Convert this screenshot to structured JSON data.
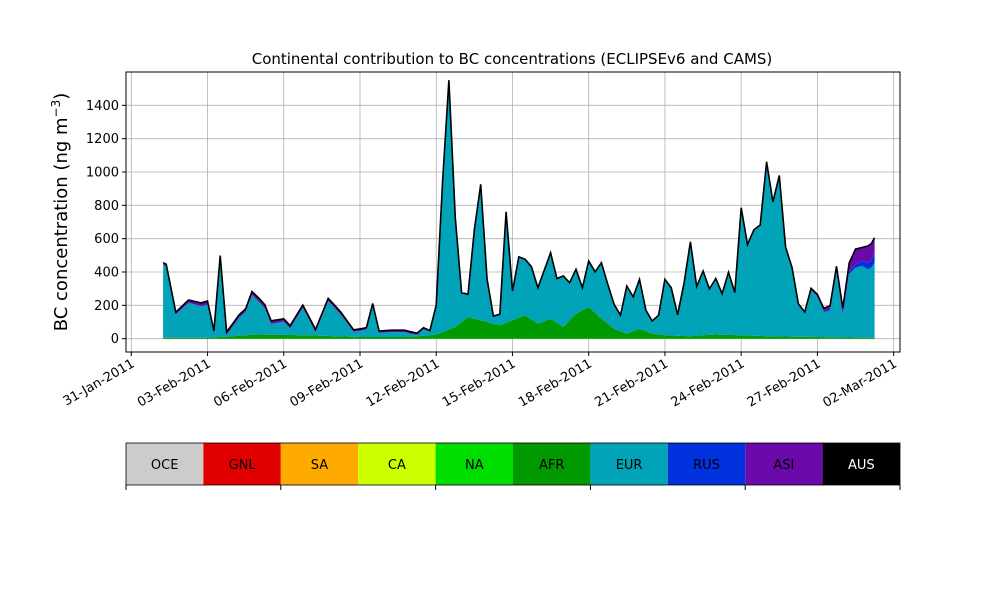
{
  "chart_data": {
    "type": "area",
    "title": "Continental contribution to BC concentrations (ECLIPSEv6 and CAMS)",
    "xlabel": "",
    "ylabel": "BC concentration (ng m",
    "ylabel_sup": "−3",
    "ylabel_close": ")",
    "x_is_date": true,
    "x_ticks": [
      "31-Jan-2011",
      "03-Feb-2011",
      "06-Feb-2011",
      "09-Feb-2011",
      "12-Feb-2011",
      "15-Feb-2011",
      "18-Feb-2011",
      "21-Feb-2011",
      "24-Feb-2011",
      "27-Feb-2011",
      "02-Mar-2011"
    ],
    "y_ticks": [
      0,
      200,
      400,
      600,
      800,
      1000,
      1200,
      1400
    ],
    "xlim": [
      "30-Jan-2011 19:00",
      "02-Mar-2011 06:00"
    ],
    "ylim": [
      -80,
      1600
    ],
    "grid": true,
    "stack_order": [
      "AFR",
      "EUR",
      "RUS",
      "ASI",
      "AUS"
    ],
    "series": [
      {
        "name": "AFR",
        "color": "#009900",
        "points": [
          [
            "01-Feb-2011 06:00",
            5
          ],
          [
            "03-Feb-2011 00:00",
            5
          ],
          [
            "05-Feb-2011 00:00",
            25
          ],
          [
            "07-Feb-2011 00:00",
            20
          ],
          [
            "09-Feb-2011 00:00",
            10
          ],
          [
            "11-Feb-2011 00:00",
            10
          ],
          [
            "12-Feb-2011 00:00",
            25
          ],
          [
            "12-Feb-2011 18:00",
            70
          ],
          [
            "13-Feb-2011 06:00",
            130
          ],
          [
            "14-Feb-2011 00:00",
            100
          ],
          [
            "14-Feb-2011 12:00",
            80
          ],
          [
            "15-Feb-2011 00:00",
            110
          ],
          [
            "15-Feb-2011 12:00",
            140
          ],
          [
            "16-Feb-2011 00:00",
            90
          ],
          [
            "16-Feb-2011 12:00",
            120
          ],
          [
            "17-Feb-2011 00:00",
            70
          ],
          [
            "17-Feb-2011 12:00",
            150
          ],
          [
            "18-Feb-2011 00:00",
            190
          ],
          [
            "18-Feb-2011 12:00",
            120
          ],
          [
            "19-Feb-2011 00:00",
            60
          ],
          [
            "19-Feb-2011 12:00",
            30
          ],
          [
            "20-Feb-2011 00:00",
            60
          ],
          [
            "20-Feb-2011 12:00",
            30
          ],
          [
            "21-Feb-2011 00:00",
            20
          ],
          [
            "22-Feb-2011 00:00",
            15
          ],
          [
            "23-Feb-2011 00:00",
            25
          ],
          [
            "24-Feb-2011 00:00",
            20
          ],
          [
            "25-Feb-2011 00:00",
            15
          ],
          [
            "27-Feb-2011 00:00",
            10
          ],
          [
            "01-Mar-2011 06:00",
            5
          ]
        ]
      },
      {
        "name": "EUR",
        "color": "#00a3b8",
        "points": [
          [
            "01-Feb-2011 06:00",
            440
          ],
          [
            "01-Feb-2011 09:00",
            430
          ],
          [
            "01-Feb-2011 18:00",
            140
          ],
          [
            "02-Feb-2011 06:00",
            210
          ],
          [
            "02-Feb-2011 18:00",
            190
          ],
          [
            "03-Feb-2011 00:00",
            200
          ],
          [
            "03-Feb-2011 06:00",
            20
          ],
          [
            "03-Feb-2011 12:00",
            470
          ],
          [
            "03-Feb-2011 18:00",
            10
          ],
          [
            "04-Feb-2011 06:00",
            110
          ],
          [
            "04-Feb-2011 12:00",
            140
          ],
          [
            "04-Feb-2011 18:00",
            240
          ],
          [
            "05-Feb-2011 06:00",
            160
          ],
          [
            "05-Feb-2011 12:00",
            65
          ],
          [
            "06-Feb-2011 00:00",
            80
          ],
          [
            "06-Feb-2011 06:00",
            40
          ],
          [
            "06-Feb-2011 18:00",
            165
          ],
          [
            "07-Feb-2011 06:00",
            20
          ],
          [
            "07-Feb-2011 18:00",
            210
          ],
          [
            "08-Feb-2011 06:00",
            130
          ],
          [
            "08-Feb-2011 18:00",
            30
          ],
          [
            "09-Feb-2011 06:00",
            45
          ],
          [
            "09-Feb-2011 12:00",
            190
          ],
          [
            "09-Feb-2011 18:00",
            25
          ],
          [
            "10-Feb-2011 06:00",
            30
          ],
          [
            "10-Feb-2011 18:00",
            30
          ],
          [
            "11-Feb-2011 06:00",
            10
          ],
          [
            "11-Feb-2011 12:00",
            40
          ],
          [
            "11-Feb-2011 18:00",
            20
          ],
          [
            "12-Feb-2011 00:00",
            170
          ],
          [
            "12-Feb-2011 06:00",
            900
          ],
          [
            "12-Feb-2011 12:00",
            1490
          ],
          [
            "12-Feb-2011 18:00",
            650
          ],
          [
            "13-Feb-2011 00:00",
            170
          ],
          [
            "13-Feb-2011 06:00",
            130
          ],
          [
            "13-Feb-2011 12:00",
            530
          ],
          [
            "13-Feb-2011 18:00",
            810
          ],
          [
            "14-Feb-2011 00:00",
            250
          ],
          [
            "14-Feb-2011 06:00",
            40
          ],
          [
            "14-Feb-2011 12:00",
            60
          ],
          [
            "14-Feb-2011 18:00",
            660
          ],
          [
            "15-Feb-2011 00:00",
            170
          ],
          [
            "15-Feb-2011 06:00",
            360
          ],
          [
            "15-Feb-2011 12:00",
            330
          ],
          [
            "15-Feb-2011 18:00",
            310
          ],
          [
            "16-Feb-2011 00:00",
            210
          ],
          [
            "16-Feb-2011 12:00",
            390
          ],
          [
            "16-Feb-2011 18:00",
            260
          ],
          [
            "17-Feb-2011 00:00",
            300
          ],
          [
            "17-Feb-2011 06:00",
            220
          ],
          [
            "17-Feb-2011 12:00",
            260
          ],
          [
            "17-Feb-2011 18:00",
            130
          ],
          [
            "18-Feb-2011 00:00",
            270
          ],
          [
            "18-Feb-2011 06:00",
            240
          ],
          [
            "18-Feb-2011 12:00",
            330
          ],
          [
            "18-Feb-2011 18:00",
            230
          ],
          [
            "19-Feb-2011 00:00",
            140
          ],
          [
            "19-Feb-2011 06:00",
            90
          ],
          [
            "19-Feb-2011 12:00",
            280
          ],
          [
            "19-Feb-2011 18:00",
            200
          ],
          [
            "20-Feb-2011 00:00",
            290
          ],
          [
            "20-Feb-2011 06:00",
            120
          ],
          [
            "20-Feb-2011 12:00",
            70
          ],
          [
            "20-Feb-2011 18:00",
            110
          ],
          [
            "21-Feb-2011 00:00",
            330
          ],
          [
            "21-Feb-2011 06:00",
            280
          ],
          [
            "21-Feb-2011 12:00",
            120
          ],
          [
            "21-Feb-2011 18:00",
            310
          ],
          [
            "22-Feb-2011 00:00",
            560
          ],
          [
            "22-Feb-2011 06:00",
            290
          ],
          [
            "22-Feb-2011 12:00",
            380
          ],
          [
            "22-Feb-2011 18:00",
            270
          ],
          [
            "23-Feb-2011 00:00",
            330
          ],
          [
            "23-Feb-2011 06:00",
            240
          ],
          [
            "23-Feb-2011 12:00",
            370
          ],
          [
            "23-Feb-2011 18:00",
            250
          ],
          [
            "24-Feb-2011 00:00",
            760
          ],
          [
            "24-Feb-2011 06:00",
            540
          ],
          [
            "24-Feb-2011 12:00",
            630
          ],
          [
            "24-Feb-2011 18:00",
            660
          ],
          [
            "25-Feb-2011 00:00",
            1040
          ],
          [
            "25-Feb-2011 06:00",
            800
          ],
          [
            "25-Feb-2011 12:00",
            960
          ],
          [
            "25-Feb-2011 18:00",
            530
          ],
          [
            "26-Feb-2011 00:00",
            410
          ],
          [
            "26-Feb-2011 06:00",
            190
          ],
          [
            "26-Feb-2011 12:00",
            140
          ],
          [
            "26-Feb-2011 18:00",
            280
          ],
          [
            "27-Feb-2011 00:00",
            240
          ],
          [
            "27-Feb-2011 06:00",
            150
          ],
          [
            "27-Feb-2011 12:00",
            160
          ],
          [
            "27-Feb-2011 18:00",
            390
          ],
          [
            "28-Feb-2011 00:00",
            130
          ],
          [
            "28-Feb-2011 06:00",
            380
          ],
          [
            "28-Feb-2011 12:00",
            420
          ],
          [
            "28-Feb-2011 18:00",
            430
          ],
          [
            "01-Mar-2011 00:00",
            410
          ],
          [
            "01-Mar-2011 03:00",
            420
          ],
          [
            "01-Mar-2011 06:00",
            450
          ]
        ]
      },
      {
        "name": "RUS",
        "color": "#0033dd",
        "points": [
          [
            "01-Feb-2011 06:00",
            0
          ],
          [
            "26-Feb-2011 12:00",
            0
          ],
          [
            "27-Feb-2011 18:00",
            10
          ],
          [
            "28-Feb-2011 12:00",
            20
          ],
          [
            "01-Mar-2011 00:00",
            40
          ],
          [
            "01-Mar-2011 06:00",
            60
          ]
        ]
      },
      {
        "name": "ASI",
        "color": "#6a0aa8",
        "points": [
          [
            "01-Feb-2011 06:00",
            10
          ],
          [
            "03-Feb-2011 00:00",
            20
          ],
          [
            "04-Feb-2011 00:00",
            15
          ],
          [
            "05-Feb-2011 00:00",
            20
          ],
          [
            "06-Feb-2011 00:00",
            15
          ],
          [
            "08-Feb-2011 00:00",
            15
          ],
          [
            "09-Feb-2011 00:00",
            10
          ],
          [
            "10-Feb-2011 00:00",
            10
          ],
          [
            "11-Feb-2011 00:00",
            10
          ],
          [
            "12-Feb-2011 00:00",
            5
          ],
          [
            "26-Feb-2011 00:00",
            5
          ],
          [
            "27-Feb-2011 00:00",
            10
          ],
          [
            "28-Feb-2011 00:00",
            30
          ],
          [
            "28-Feb-2011 06:00",
            50
          ],
          [
            "28-Feb-2011 12:00",
            90
          ],
          [
            "28-Feb-2011 18:00",
            80
          ],
          [
            "01-Mar-2011 00:00",
            100
          ],
          [
            "01-Mar-2011 06:00",
            90
          ]
        ]
      },
      {
        "name": "AUS",
        "color": "#000000",
        "points": [
          [
            "01-Feb-2011 06:00",
            1
          ],
          [
            "01-Mar-2011 06:00",
            1
          ]
        ]
      }
    ],
    "legend": {
      "placement": "bottom",
      "entries": [
        {
          "name": "OCE",
          "color": "#cccccc",
          "text_color": "#000000"
        },
        {
          "name": "GNL",
          "color": "#e00000",
          "text_color": "#000000"
        },
        {
          "name": "SA",
          "color": "#ffaa00",
          "text_color": "#000000"
        },
        {
          "name": "CA",
          "color": "#ccff00",
          "text_color": "#000000"
        },
        {
          "name": "NA",
          "color": "#00dd00",
          "text_color": "#000000"
        },
        {
          "name": "AFR",
          "color": "#009900",
          "text_color": "#000000"
        },
        {
          "name": "EUR",
          "color": "#00a3b8",
          "text_color": "#000000"
        },
        {
          "name": "RUS",
          "color": "#0033dd",
          "text_color": "#000000"
        },
        {
          "name": "ASI",
          "color": "#6a0aa8",
          "text_color": "#000000"
        },
        {
          "name": "AUS",
          "color": "#000000",
          "text_color": "#ffffff"
        }
      ]
    }
  }
}
